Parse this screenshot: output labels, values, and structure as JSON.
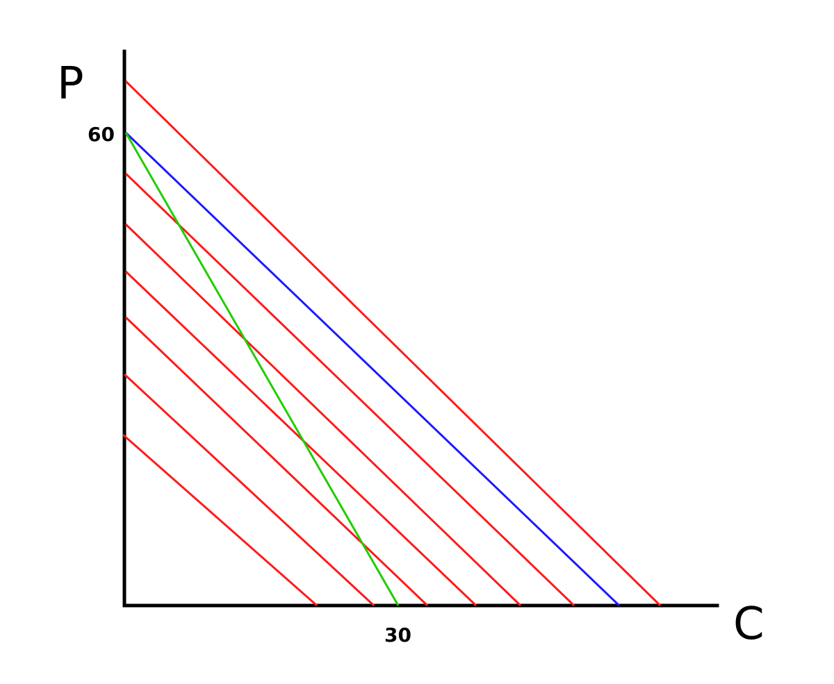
{
  "diagram": {
    "y_axis_label": "P",
    "x_axis_label": "C",
    "y_tick_label": "60",
    "x_tick_label": "30",
    "colors": {
      "axes": "#000000",
      "red_lines": "#ff1a1a",
      "blue_line": "#1a1aff",
      "green_line": "#22cc00"
    }
  }
}
